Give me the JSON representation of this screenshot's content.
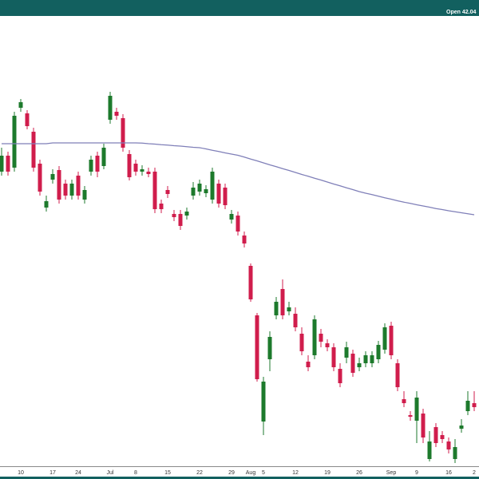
{
  "chart_data": {
    "type": "candlestick",
    "annotation": "Open 42.04",
    "up_color": "#1d7a2c",
    "down_color": "#d01d4c",
    "ylim": [
      38.68,
      61.24
    ],
    "categories": [
      null,
      null,
      null,
      "10",
      null,
      null,
      null,
      null,
      "17",
      null,
      null,
      null,
      "24",
      null,
      null,
      null,
      null,
      "Jul",
      null,
      null,
      null,
      "8",
      null,
      null,
      null,
      null,
      "15",
      null,
      null,
      null,
      null,
      "22",
      null,
      null,
      null,
      null,
      "29",
      null,
      null,
      "Aug",
      null,
      "5",
      null,
      null,
      null,
      null,
      "12",
      null,
      null,
      null,
      null,
      "19",
      null,
      null,
      null,
      null,
      "26",
      null,
      null,
      null,
      null,
      "Sep",
      null,
      null,
      null,
      "9",
      null,
      null,
      null,
      null,
      "16",
      null,
      null,
      null,
      "2"
    ],
    "open": [
      53.44,
      54.24,
      53.64,
      56.64,
      56.36,
      55.44,
      53.84,
      51.64,
      53.04,
      53.52,
      52.84,
      52.24,
      53.24,
      52.04,
      53.44,
      54.24,
      53.72,
      56.04,
      56.44,
      56.12,
      54.32,
      53.84,
      53.44,
      53.44,
      53.44,
      51.84,
      52.52,
      51.32,
      51.32,
      51.24,
      52.24,
      52.44,
      52.36,
      52.04,
      52.84,
      52.64,
      51.04,
      51.24,
      50.24,
      48.72,
      46.24,
      40.92,
      44.04,
      46.24,
      47.56,
      46.44,
      46.32,
      45.32,
      43.92,
      44.24,
      45.32,
      44.84,
      44.64,
      43.56,
      44.12,
      44.32,
      43.64,
      43.84,
      43.84,
      44.04,
      44.52,
      45.72,
      43.84,
      42.04,
      41.24,
      40.96,
      41.32,
      39.04,
      40.64,
      40.24,
      39.92,
      39.04,
      40.56,
      41.44,
      41.84
    ],
    "high": [
      54.64,
      54.44,
      56.44,
      57.08,
      56.52,
      55.64,
      54.04,
      52.24,
      53.56,
      53.72,
      53.04,
      53.04,
      53.44,
      52.72,
      54.24,
      54.44,
      54.84,
      57.44,
      56.64,
      56.32,
      54.52,
      54.04,
      53.76,
      53.64,
      53.64,
      52.04,
      52.72,
      51.52,
      51.52,
      51.64,
      52.92,
      53.04,
      52.76,
      53.64,
      53.04,
      52.84,
      51.52,
      51.44,
      50.44,
      48.84,
      46.36,
      43.16,
      45.44,
      47.16,
      48.04,
      46.92,
      46.64,
      45.64,
      44.24,
      46.24,
      45.56,
      45.04,
      44.84,
      43.84,
      44.92,
      44.52,
      44.12,
      44.44,
      44.44,
      44.96,
      45.84,
      45.92,
      44.04,
      42.44,
      41.44,
      42.44,
      41.56,
      40.44,
      40.84,
      40.44,
      40.12,
      40.04,
      41.04,
      42.44,
      42.44
    ],
    "low": [
      53.24,
      53.24,
      53.44,
      56.44,
      55.56,
      53.44,
      52.24,
      51.44,
      52.84,
      51.84,
      52.04,
      52.04,
      52.04,
      51.84,
      53.24,
      53.16,
      53.56,
      55.84,
      56.04,
      54.44,
      53.0,
      53.24,
      53.24,
      53.16,
      51.36,
      51.36,
      52.12,
      50.96,
      50.52,
      51.04,
      52.04,
      52.24,
      52.16,
      51.84,
      51.64,
      51.56,
      50.84,
      50.24,
      49.64,
      46.92,
      42.92,
      40.24,
      43.44,
      46.04,
      46.04,
      46.24,
      45.44,
      44.24,
      43.44,
      44.04,
      44.64,
      44.44,
      43.44,
      42.64,
      43.84,
      43.16,
      43.44,
      43.64,
      43.64,
      43.84,
      44.32,
      44.04,
      42.44,
      41.64,
      40.96,
      39.84,
      39.84,
      38.92,
      39.64,
      39.84,
      39.32,
      38.84,
      40.36,
      41.24,
      41.44
    ],
    "close": [
      54.24,
      53.44,
      56.24,
      56.92,
      55.72,
      53.64,
      52.44,
      51.96,
      53.32,
      52.04,
      52.24,
      52.84,
      52.24,
      52.52,
      54.04,
      53.44,
      54.64,
      57.24,
      56.24,
      54.64,
      53.16,
      53.44,
      53.56,
      53.32,
      51.56,
      51.56,
      52.32,
      51.16,
      50.72,
      51.44,
      52.64,
      52.84,
      52.56,
      53.44,
      51.84,
      51.76,
      51.32,
      50.44,
      49.84,
      47.04,
      43.04,
      42.92,
      45.16,
      46.92,
      46.24,
      46.64,
      45.64,
      44.44,
      43.64,
      46.04,
      44.92,
      44.64,
      43.64,
      42.84,
      44.64,
      43.36,
      43.84,
      44.24,
      44.24,
      44.76,
      45.64,
      44.24,
      42.64,
      41.84,
      41.16,
      42.12,
      40.12,
      39.92,
      39.84,
      40.04,
      39.52,
      39.64,
      40.72,
      41.96,
      41.64
    ],
    "overlay": {
      "type": "line",
      "color": "#7f7fb8",
      "values": [
        54.84,
        54.84,
        54.84,
        54.84,
        54.84,
        54.84,
        54.84,
        54.84,
        54.88,
        54.88,
        54.88,
        54.88,
        54.88,
        54.88,
        54.88,
        54.88,
        54.88,
        54.88,
        54.88,
        54.88,
        54.88,
        54.88,
        54.87,
        54.84,
        54.82,
        54.79,
        54.77,
        54.74,
        54.72,
        54.69,
        54.66,
        54.64,
        54.58,
        54.51,
        54.45,
        54.38,
        54.32,
        54.26,
        54.17,
        54.07,
        53.98,
        53.88,
        53.78,
        53.69,
        53.59,
        53.5,
        53.4,
        53.3,
        53.21,
        53.11,
        53.02,
        52.92,
        52.82,
        52.73,
        52.63,
        52.54,
        52.44,
        52.36,
        52.29,
        52.21,
        52.13,
        52.06,
        51.98,
        51.91,
        51.85,
        51.78,
        51.72,
        51.66,
        51.59,
        51.54,
        51.48,
        51.43,
        51.38,
        51.33,
        51.28
      ]
    }
  }
}
